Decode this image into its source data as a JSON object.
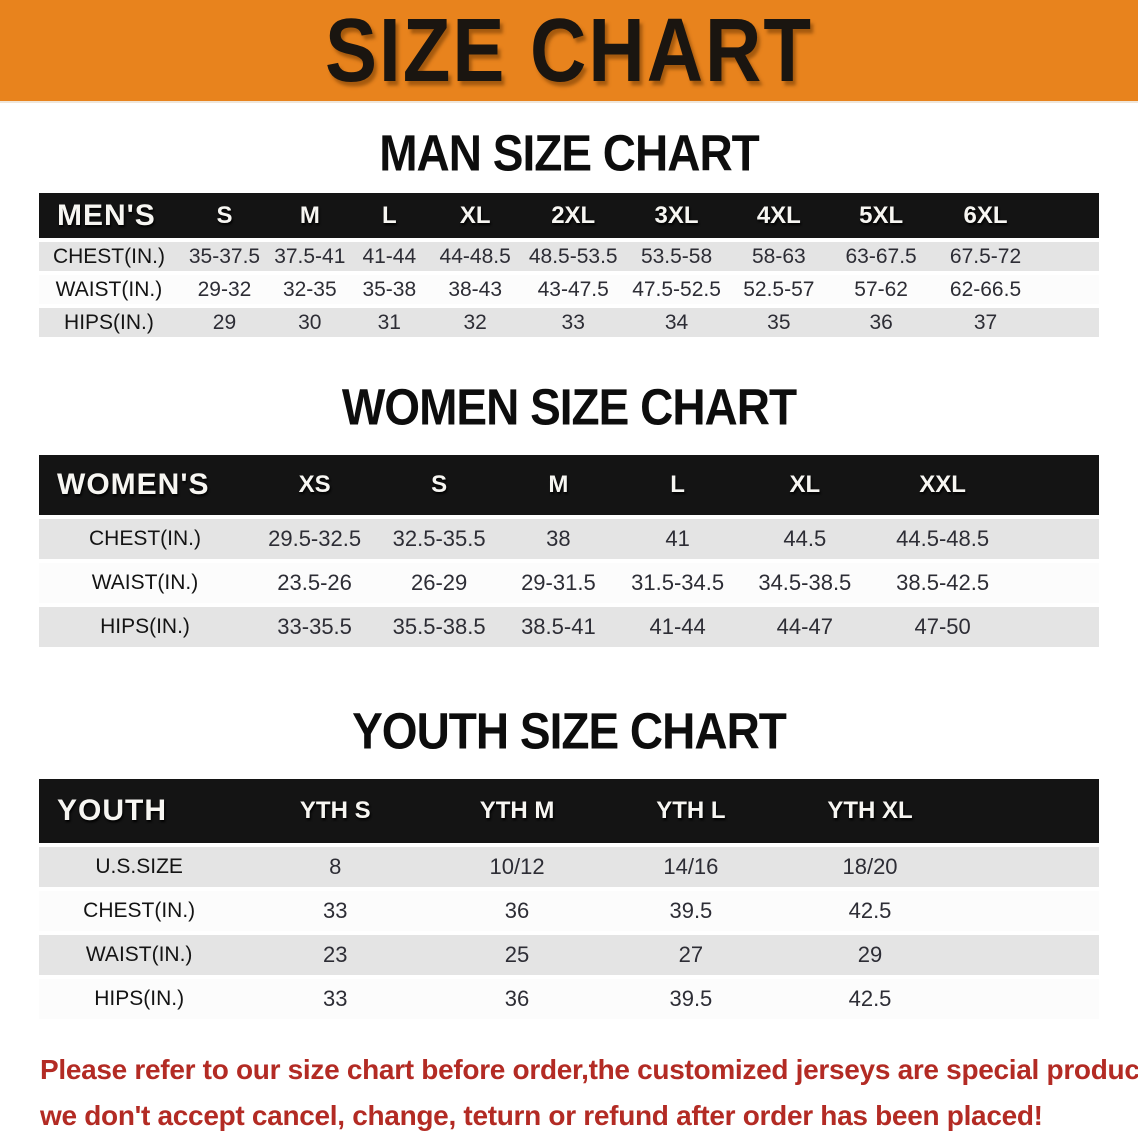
{
  "banner": {
    "title": "SIZE CHART",
    "bg_color": "#E8831D",
    "text_color": "#1a1510"
  },
  "sections": [
    {
      "id": "men",
      "heading": "MAN SIZE CHART",
      "table": {
        "header_label": "MEN'S",
        "columns": [
          "S",
          "M",
          "L",
          "XL",
          "2XL",
          "3XL",
          "4XL",
          "5XL",
          "6XL"
        ],
        "rows": [
          {
            "label": "CHEST(IN.)",
            "values": [
              "35-37.5",
              "37.5-41",
              "41-44",
              "44-48.5",
              "48.5-53.5",
              "53.5-58",
              "58-63",
              "63-67.5",
              "67.5-72"
            ]
          },
          {
            "label": "WAIST(IN.)",
            "values": [
              "29-32",
              "32-35",
              "35-38",
              "38-43",
              "43-47.5",
              "47.5-52.5",
              "52.5-57",
              "57-62",
              "62-66.5"
            ]
          },
          {
            "label": "HIPS(IN.)",
            "values": [
              "29",
              "30",
              "31",
              "32",
              "33",
              "34",
              "35",
              "36",
              "37"
            ]
          }
        ]
      }
    },
    {
      "id": "women",
      "heading": "WOMEN SIZE CHART",
      "table": {
        "header_label": "WOMEN'S",
        "columns": [
          "XS",
          "S",
          "M",
          "L",
          "XL",
          "XXL"
        ],
        "rows": [
          {
            "label": "CHEST(IN.)",
            "values": [
              "29.5-32.5",
              "32.5-35.5",
              "38",
              "41",
              "44.5",
              "44.5-48.5"
            ]
          },
          {
            "label": "WAIST(IN.)",
            "values": [
              "23.5-26",
              "26-29",
              "29-31.5",
              "31.5-34.5",
              "34.5-38.5",
              "38.5-42.5"
            ]
          },
          {
            "label": "HIPS(IN.)",
            "values": [
              "33-35.5",
              "35.5-38.5",
              "38.5-41",
              "41-44",
              "44-47",
              "47-50"
            ]
          }
        ]
      }
    },
    {
      "id": "youth",
      "heading": "YOUTH SIZE CHART",
      "table": {
        "header_label": "YOUTH",
        "columns": [
          "YTH S",
          "YTH M",
          "YTH L",
          "YTH XL"
        ],
        "rows": [
          {
            "label": "U.S.SIZE",
            "values": [
              "8",
              "10/12",
              "14/16",
              "18/20"
            ]
          },
          {
            "label": "CHEST(IN.)",
            "values": [
              "33",
              "36",
              "39.5",
              "42.5"
            ]
          },
          {
            "label": "WAIST(IN.)",
            "values": [
              "23",
              "25",
              "27",
              "29"
            ]
          },
          {
            "label": "HIPS(IN.)",
            "values": [
              "33",
              "36",
              "39.5",
              "42.5"
            ]
          }
        ]
      }
    }
  ],
  "footer_note": {
    "line1": "Please refer to our size chart before order,the customized jerseys are special products,",
    "line2": "we don't accept cancel, change, teturn or refund after order has been placed!",
    "color": "#B32B24"
  },
  "colors": {
    "header_row_bg": "#141414",
    "alt_row_bg": "#E4E4E4",
    "plain_row_bg": "#FCFCFC"
  }
}
